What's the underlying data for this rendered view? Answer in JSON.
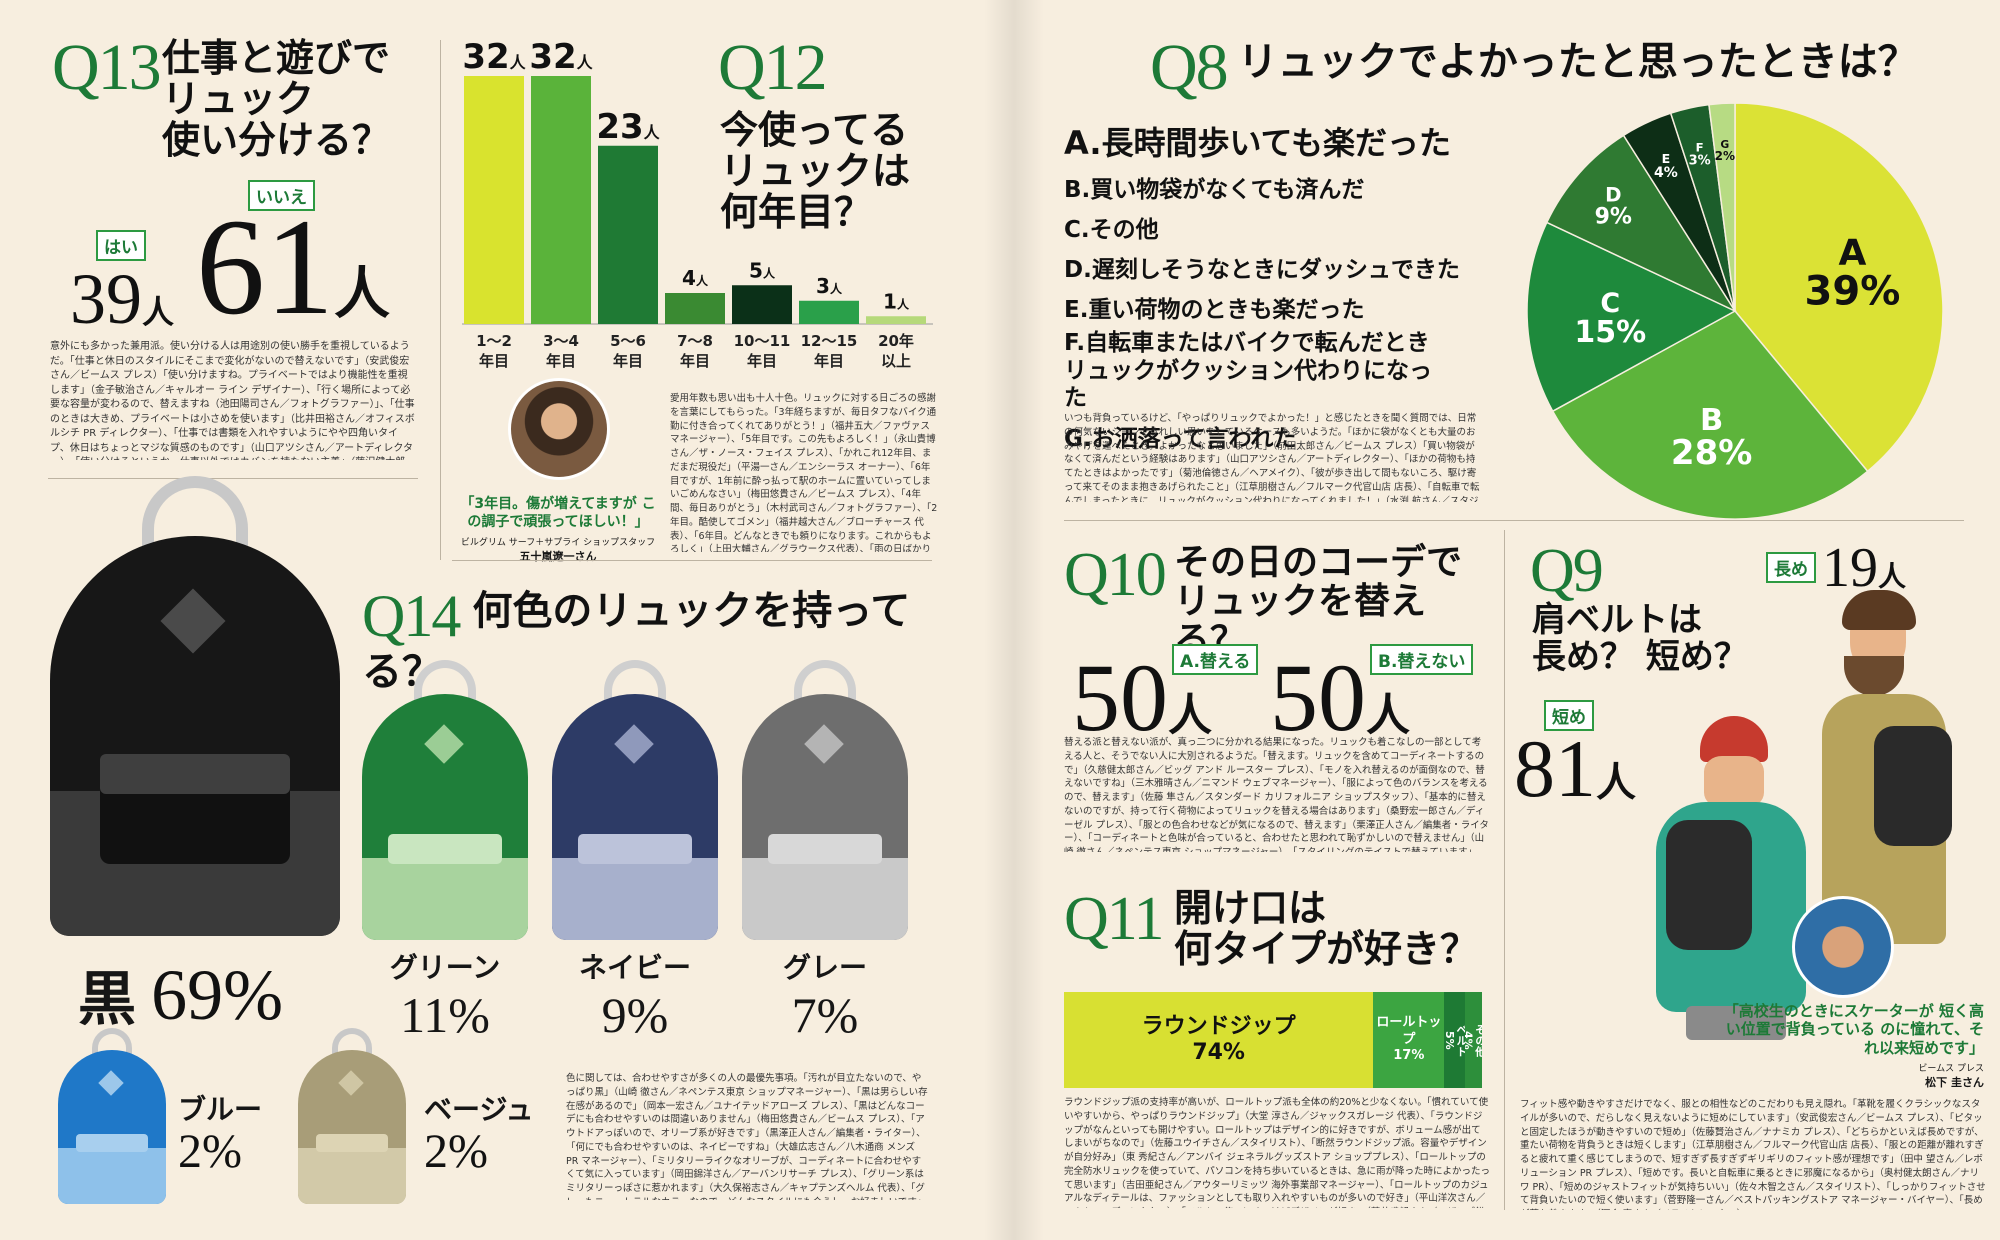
{
  "q13": {
    "num": "Q13",
    "title_lines": [
      "仕事と遊びで",
      "リュック",
      "使い分ける？"
    ],
    "yes_tag": "はい",
    "no_tag": "いいえ",
    "yes_value": "39",
    "no_value": "61",
    "unit": "人",
    "body": "意外にも多かった兼用派。使い分ける人は用途別の使い勝手を重視しているようだ。「仕事と休日のスタイルにそこまで変化がないので替えないです」（安武俊宏さん／ビームス プレス）「使い分けますね。プライベートではより機能性を重視します」（金子敏治さん／キャルオー ライン デザイナー）、「行く場所によって必要な容量が変わるので、替えますね（池田陽司さん／フォトグラファー）」、「仕事のときは大きめ、プライベートは小さめを使います」（比井田裕さん／オフィスボルシチ PR ディレクター）、「仕事では書類を入れやすいようにやや四角いタイプ、休日はちょっとマジな質感のものです」（山口アツシさん／アートディレクター）、「使い分けるというか、仕事以外ではカバンを持たない主義」（藤沢健太郎さん／ロットワイラー ブランドマネージャー）、「仕事用はガシガシ使えるものを選びます」（村上圭さん／サタデーズ ニューヨークシティ ショップマネージャー・ショッププレス）"
  },
  "q12": {
    "num": "Q12",
    "title_lines": [
      "今使ってる",
      "リュックは",
      "何年目？"
    ],
    "unit": "人",
    "chart_data": {
      "type": "bar",
      "categories": [
        "1〜2年目",
        "3〜4年目",
        "5〜6年目",
        "7〜8年目",
        "10〜11年目",
        "12〜15年目",
        "20年以上"
      ],
      "cat_top": [
        "1〜2",
        "3〜4",
        "5〜6",
        "7〜8",
        "10〜11",
        "12〜15",
        "20年"
      ],
      "cat_bottom": [
        "年目",
        "年目",
        "年目",
        "年目",
        "年目",
        "年目",
        "以上"
      ],
      "values": [
        32,
        32,
        23,
        4,
        5,
        3,
        1
      ],
      "colors": [
        "#d9e32e",
        "#5ab33a",
        "#1f7a34",
        "#3a8a32",
        "#0b3018",
        "#2aa04a",
        "#b6d97a"
      ],
      "ylim": [
        0,
        32
      ]
    },
    "quote": "「3年目。傷が増えてますが この調子で頑張ってほしい！」",
    "quote_credit": "ビルグリム サーフ＋サプライ ショップスタッフ",
    "quote_name": "五十嵐遼一さん",
    "body": "愛用年数も思い出も十人十色。リュックに対する日ごろの感謝を言葉にしてもらった。「3年経ちますが、毎日タフなバイク通勤に付き合ってくれてありがとう！」（福井五大／ファヴァス マネージャー）、「5年目です。この先もよろしく！」（永山貴博さん／ザ・ノース・フェイス プレス）、「かれこれ12年目、まだまだ現役だ」（平湯一さん／エンシーラス オーナー）、「6年目ですが、1年前に酔っ払って駅のホームに置いていってしまいごめんなさい」（梅田悠貴さん／ビームス プレス）、「4年間、毎日ありがとう」（木村武司さん／フォトグラファー）、「2年目。酷使してゴメン」（福井越大さん／ブローチャース 代表）、「6年目。どんなときでも頼りになります。これからもよろしく」（上田大輔さん／グラウークス代表）、「雨の日ばかり使ってしまって申し訳ない」（常森 亮さん／ワディションルーム PR）、「いつも重い PC を運んでくれてありがとう！」（鈴木孝宏さん／ヒーローインターナショナル プレス）"
  },
  "q8": {
    "num": "Q8",
    "title": "リュックでよかったと思ったときは？",
    "items": [
      "A.長時間歩いても楽だった",
      "B.買い物袋がなくても済んだ",
      "C.その他",
      "D.遅刻しそうなときにダッシュできた",
      "E.重い荷物のときも楽だった",
      "F.自転車またはバイクで転んだとき リュックがクッション代わりになった",
      "G.お洒落って言われた"
    ],
    "chart_data": {
      "type": "pie",
      "labels": [
        "A",
        "B",
        "C",
        "D",
        "E",
        "F",
        "G"
      ],
      "values": [
        39,
        28,
        15,
        9,
        4,
        3,
        2
      ],
      "pct_labels": [
        "39%",
        "28%",
        "15%",
        "9%",
        "4%",
        "3%",
        "2%"
      ],
      "colors": [
        "#dbe235",
        "#5db43b",
        "#1e8a3c",
        "#2f7a32",
        "#0d2e16",
        "#1c5e2b",
        "#b7db83"
      ]
    },
    "body": "いつも背負っているけど、「やっぱりリュックでよかった！」と感じたときを聞く質問では、日常の何気ないシーンでうれしい思いをしているケースも多いようだ。「ほかに袋がなくとも大量のおみやげを運べたとき。よかったなと思いました」（前田太郎さん／ビームス プレス）「買い物袋がなくて済んだという経験はあります」（山口アツシさん／アートディレクター）、「ほかの荷物も持てたときはよかったです」（菊池倫徳さん／ヘアメイク）、「彼が歩き出して間もないころ、駆け寄って来てそのまま抱きあげられたこと」（江草朋樹さん／フルマーク代官山店 店長）、「自転車で転んでしまったときに、リュックがクッション代わりになってくれました！」（水渕 航さん／スタジオ フォブワーク 代表）"
  },
  "q14": {
    "num": "Q14",
    "title": "何色のリュックを持ってる？",
    "colors": [
      {
        "name": "黒",
        "pct": "69%",
        "hex": "#1a1a1a"
      },
      {
        "name": "グリーン",
        "pct": "11%",
        "hex": "#1f7f3a"
      },
      {
        "name": "ネイビー",
        "pct": "9%",
        "hex": "#2d3b66"
      },
      {
        "name": "グレー",
        "pct": "7%",
        "hex": "#6e6e6e"
      },
      {
        "name": "ブルー",
        "pct": "2%",
        "hex": "#1f78c8"
      },
      {
        "name": "ベージュ",
        "pct": "2%",
        "hex": "#a89d78"
      }
    ],
    "body": "色に関しては、合わせやすさが多くの人の最優先事項。「汚れが目立たないので、やっぱり黒」（山崎 徹さん／ネペンテス東京 ショップマネージャー）、「黒は男らしい存在感があるので」（岡本一宏さん／ユナイテッドアローズ プレス）、「黒はどんなコーデにも合わせやすいのは間違いありません」（梅田悠貴さん／ビームス プレス）、「アウトドアっぽいので、オリーブ系が好きです」（黒澤正人さん／編集者・ライター）、「何にでも合わせやすいのは、ネイビーですね」（大雄広志さん／八木通商 メンズ PR マネージャー）、「ミリタリーライクなオリーブが、コーディネートに合わせやすくて気に入っています」（岡田錦洋さん／アーバンリサーチ プレス）、「グリーン系はミリタリーっぽさに惹かれます」（大久保裕志さん／キャプテンズヘルム 代表）、「グレーもニュートラルなカラーなので、どんなスタイルにも合うし、お好ましいです」（相野大吉さん／ネペンテス プレス）"
  },
  "q10": {
    "num": "Q10",
    "title_lines": [
      "その日のコーデで",
      "リュックを替える？"
    ],
    "a_tag": "A.替える",
    "b_tag": "B.替えない",
    "a_value": "50",
    "b_value": "50",
    "unit": "人",
    "body": "替える派と替えない派が、真っ二つに分かれる結果になった。リュックも着こなしの一部として考える人と、そうでない人に大別されるようだ。「替えます。リュックを含めてコーディネートするので」（久慈健太郎さん／ビッグ アンド ルースター プレス）、「モノを入れ替えるのが面倒なので、替えないですね」（三木雅晴さん／ニマンド ウェブマネージャー）、「服によって色のバランスを考えるので、替えます」（佐藤 隼さん／スタンダード カリフォルニア ショップスタッフ）、「基本的に替えないのですが、持って行く荷物によってリュックを替える場合はあります」（桑野宏一郎さん／ディーゼル プレス）、「服との色合わせなどが気になるので、替えます」（栗澤正人さん／編集者・ライター）、「コーディネートと色味が合っていると、合わせたと思われて恥ずかしいので替えません」（山崎 徹さん／ネペンテス東京 ショップマネージャー）、「スタイリングのテイストで替えています」（山田昭一さん／スノーピーク プレス）"
  },
  "q11": {
    "num": "Q11",
    "title_lines": [
      "開け口は",
      "何タイプが好き？"
    ],
    "chart_data": {
      "type": "bar",
      "orientation": "horizontal-stacked",
      "labels": [
        "ラウンドジップ",
        "ロールトップ",
        "ベルト",
        "その他"
      ],
      "values": [
        74,
        17,
        5,
        4
      ],
      "pct_labels": [
        "74%",
        "17%",
        "5%",
        "4%"
      ],
      "colors": [
        "#d8e032",
        "#3ca541",
        "#1e7a34",
        "#2d8f3b"
      ]
    },
    "body": "ラウンドジップ派の支持率が高いが、ロールトップ派も全体の約20%と少なくない。「慣れていて使いやすいから、やっぱりラウンドジップ」（大堂 淳さん／ジャックスガレージ 代表）、「ラウンドジップがなんといっても開けやすい。ロールトップはデザイン的に好きですが、ボリューム感が出てしまいがちなので」（佐藤ユウイチさん／スタイリスト）、「断然ラウンドジップ派。容量やデザインが自分好み」（東 秀紀さん／アンバイ ジェネラルグッズストア ショッププレス）、「ロールトップの完全防水リュックを使っていて、パソコンを持ち歩いているときは、急に雨が降った時によかったって思います」（吉田亜紀さん／アウターリミッツ 海外事業部マネージャー）、「ロールトップのカジュアルなディテールは、ファッションとしても取り入れやすいものが多いので好き」（平山洋次さん／ヘムト PR ディレクター）、「ベルト。使いにくいけどデザインが好き」（芹井盛朗さん／ロザンゴ鎌倉 代表）"
  },
  "q9": {
    "num": "Q9",
    "title_lines": [
      "肩ベルトは",
      "長め？ 短め？"
    ],
    "long_tag": "長め",
    "short_tag": "短め",
    "long_value": "19",
    "short_value": "81",
    "unit": "人",
    "quote": "「高校生のときにスケーターが 短く高い位置で背負っている のに憧れて、それ以来短めです」",
    "quote_credit": "ビームス プレス",
    "quote_name": "松下 圭さん",
    "body": "フィット感や動きやすさだけでなく、服との相性などのこだわりも見え隠れ。「革靴を履くクラシックなスタイルが多いので、だらしなく見えないように短めにしています」（安武俊宏さん／ビームス プレス）、「ピタッと固定したほうが動きやすいので短め」（佐藤賢治さん／ナナミカ プレス）、「どちらかといえば長めですが、重たい荷物を背負うときは短くします」（江草朋樹さん／フルマーク代官山店 店長）、「服との距離が離れすぎると疲れて重く感じてしまうので、短すぎず長すぎずギリギリのフィット感が理想です」（田中 望さん／レボリューション PR プレス）、「短めです。長いと自転車に乗るときに邪魔になるから」（奥村健太朗さん／ナリワ PR）、「短めのジャストフィットが気持ちいい」（佐々木智之さん／スタイリスト）、「しっかりフィットさせて背負いたいので短く使います」（菅野隆一さん／ベストパッキングストア マネージャー・バイヤー）、「長めが落ち着きます」（河合 寛さん／イラストレーター）"
  }
}
